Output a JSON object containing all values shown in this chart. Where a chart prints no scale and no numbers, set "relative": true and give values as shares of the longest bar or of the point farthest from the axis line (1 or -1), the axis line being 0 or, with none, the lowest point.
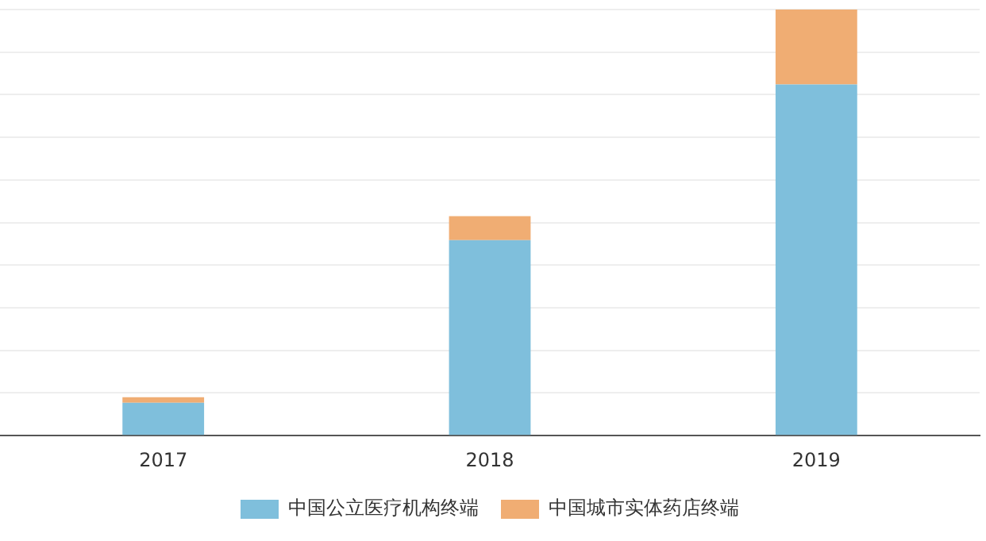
{
  "chart_data": {
    "type": "bar",
    "stacked": true,
    "relative": true,
    "categories": [
      "2017",
      "2018",
      "2019"
    ],
    "series": [
      {
        "name": "中国公立医疗机构终端",
        "color": "#7fbfdc",
        "values": [
          0.077,
          0.459,
          0.824
        ]
      },
      {
        "name": "中国城市实体药店终端",
        "color": "#f0ad73",
        "values": [
          0.013,
          0.056,
          0.176
        ]
      }
    ],
    "grid": "y",
    "legend": "bottom"
  }
}
